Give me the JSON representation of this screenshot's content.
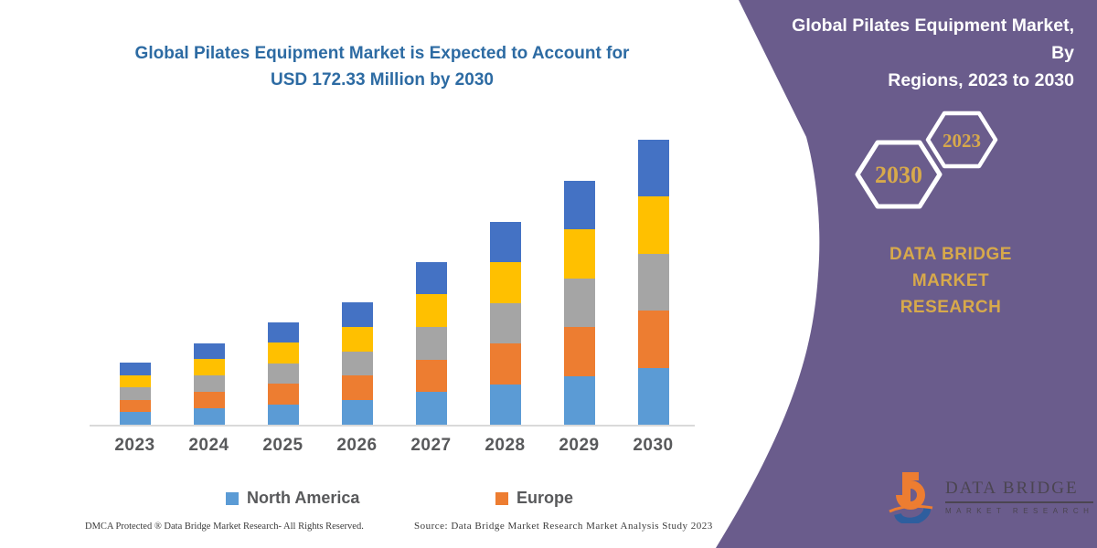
{
  "chart": {
    "title_line1": "Global Pilates Equipment Market is Expected to Account for",
    "title_line2": "USD 172.33 Million by 2030",
    "title_color": "#2D6BA3"
  },
  "chart_data": {
    "type": "bar",
    "stacked": true,
    "unit": "USD Million",
    "title": "Global Pilates Equipment Market is Expected to Account for USD 172.33 Million by 2030",
    "categories": [
      "2023",
      "2024",
      "2025",
      "2026",
      "2027",
      "2028",
      "2029",
      "2030"
    ],
    "totals": [
      37.6,
      49.7,
      61.9,
      74.0,
      98.3,
      122.6,
      147.5,
      172.33
    ],
    "series": [
      {
        "name": "North America",
        "color": "#5B9BD5",
        "values": [
          7.5,
          9.9,
          12.4,
          14.8,
          19.7,
          24.5,
          29.5,
          34.5
        ]
      },
      {
        "name": "Europe",
        "color": "#ED7D31",
        "values": [
          7.5,
          9.9,
          12.4,
          14.8,
          19.7,
          24.5,
          29.5,
          34.5
        ]
      },
      {
        "name": "unlabeled-region-gray",
        "color": "#A5A5A5",
        "values": [
          7.5,
          9.9,
          12.4,
          14.8,
          19.7,
          24.5,
          29.5,
          34.5
        ]
      },
      {
        "name": "unlabeled-region-yellow",
        "color": "#FFC000",
        "values": [
          7.5,
          9.9,
          12.4,
          14.8,
          19.7,
          24.5,
          29.5,
          34.5
        ]
      },
      {
        "name": "unlabeled-region-darkblue",
        "color": "#4472C4",
        "values": [
          7.5,
          9.9,
          12.4,
          14.8,
          19.7,
          24.5,
          29.5,
          34.5
        ]
      }
    ],
    "legend": [
      "North America",
      "Europe"
    ],
    "legend_position": "bottom",
    "grid": false,
    "ylim": [
      0,
      180
    ],
    "xlabel": "",
    "ylabel": ""
  },
  "legend": {
    "items": [
      {
        "label": "North America",
        "color": "#5B9BD5"
      },
      {
        "label": "Europe",
        "color": "#ED7D31"
      }
    ]
  },
  "footer": {
    "dmca": "DMCA Protected ® Data Bridge Market Research-  All Rights Reserved.",
    "source": "Source: Data Bridge Market Research  Market Analysis Study 2023"
  },
  "panel": {
    "title_line1": "Global Pilates Equipment Market, By",
    "title_line2": "Regions, 2023 to 2030",
    "hexagons": [
      {
        "label": "2030"
      },
      {
        "label": "2023"
      }
    ],
    "brand_line1": "DATA BRIDGE MARKET",
    "brand_line2": "RESEARCH",
    "logo": {
      "title": "DATA BRIDGE",
      "tagline": "MARKET RESEARCH"
    },
    "colors": {
      "background": "#6A5C8C",
      "gold": "#D7A94B",
      "title_text": "#FFFFFF",
      "hexagon_stroke": "#FFFFFF",
      "logo_orange": "#ED7D31",
      "logo_blue": "#2E5E9E",
      "logo_text": "#4B4551"
    }
  }
}
